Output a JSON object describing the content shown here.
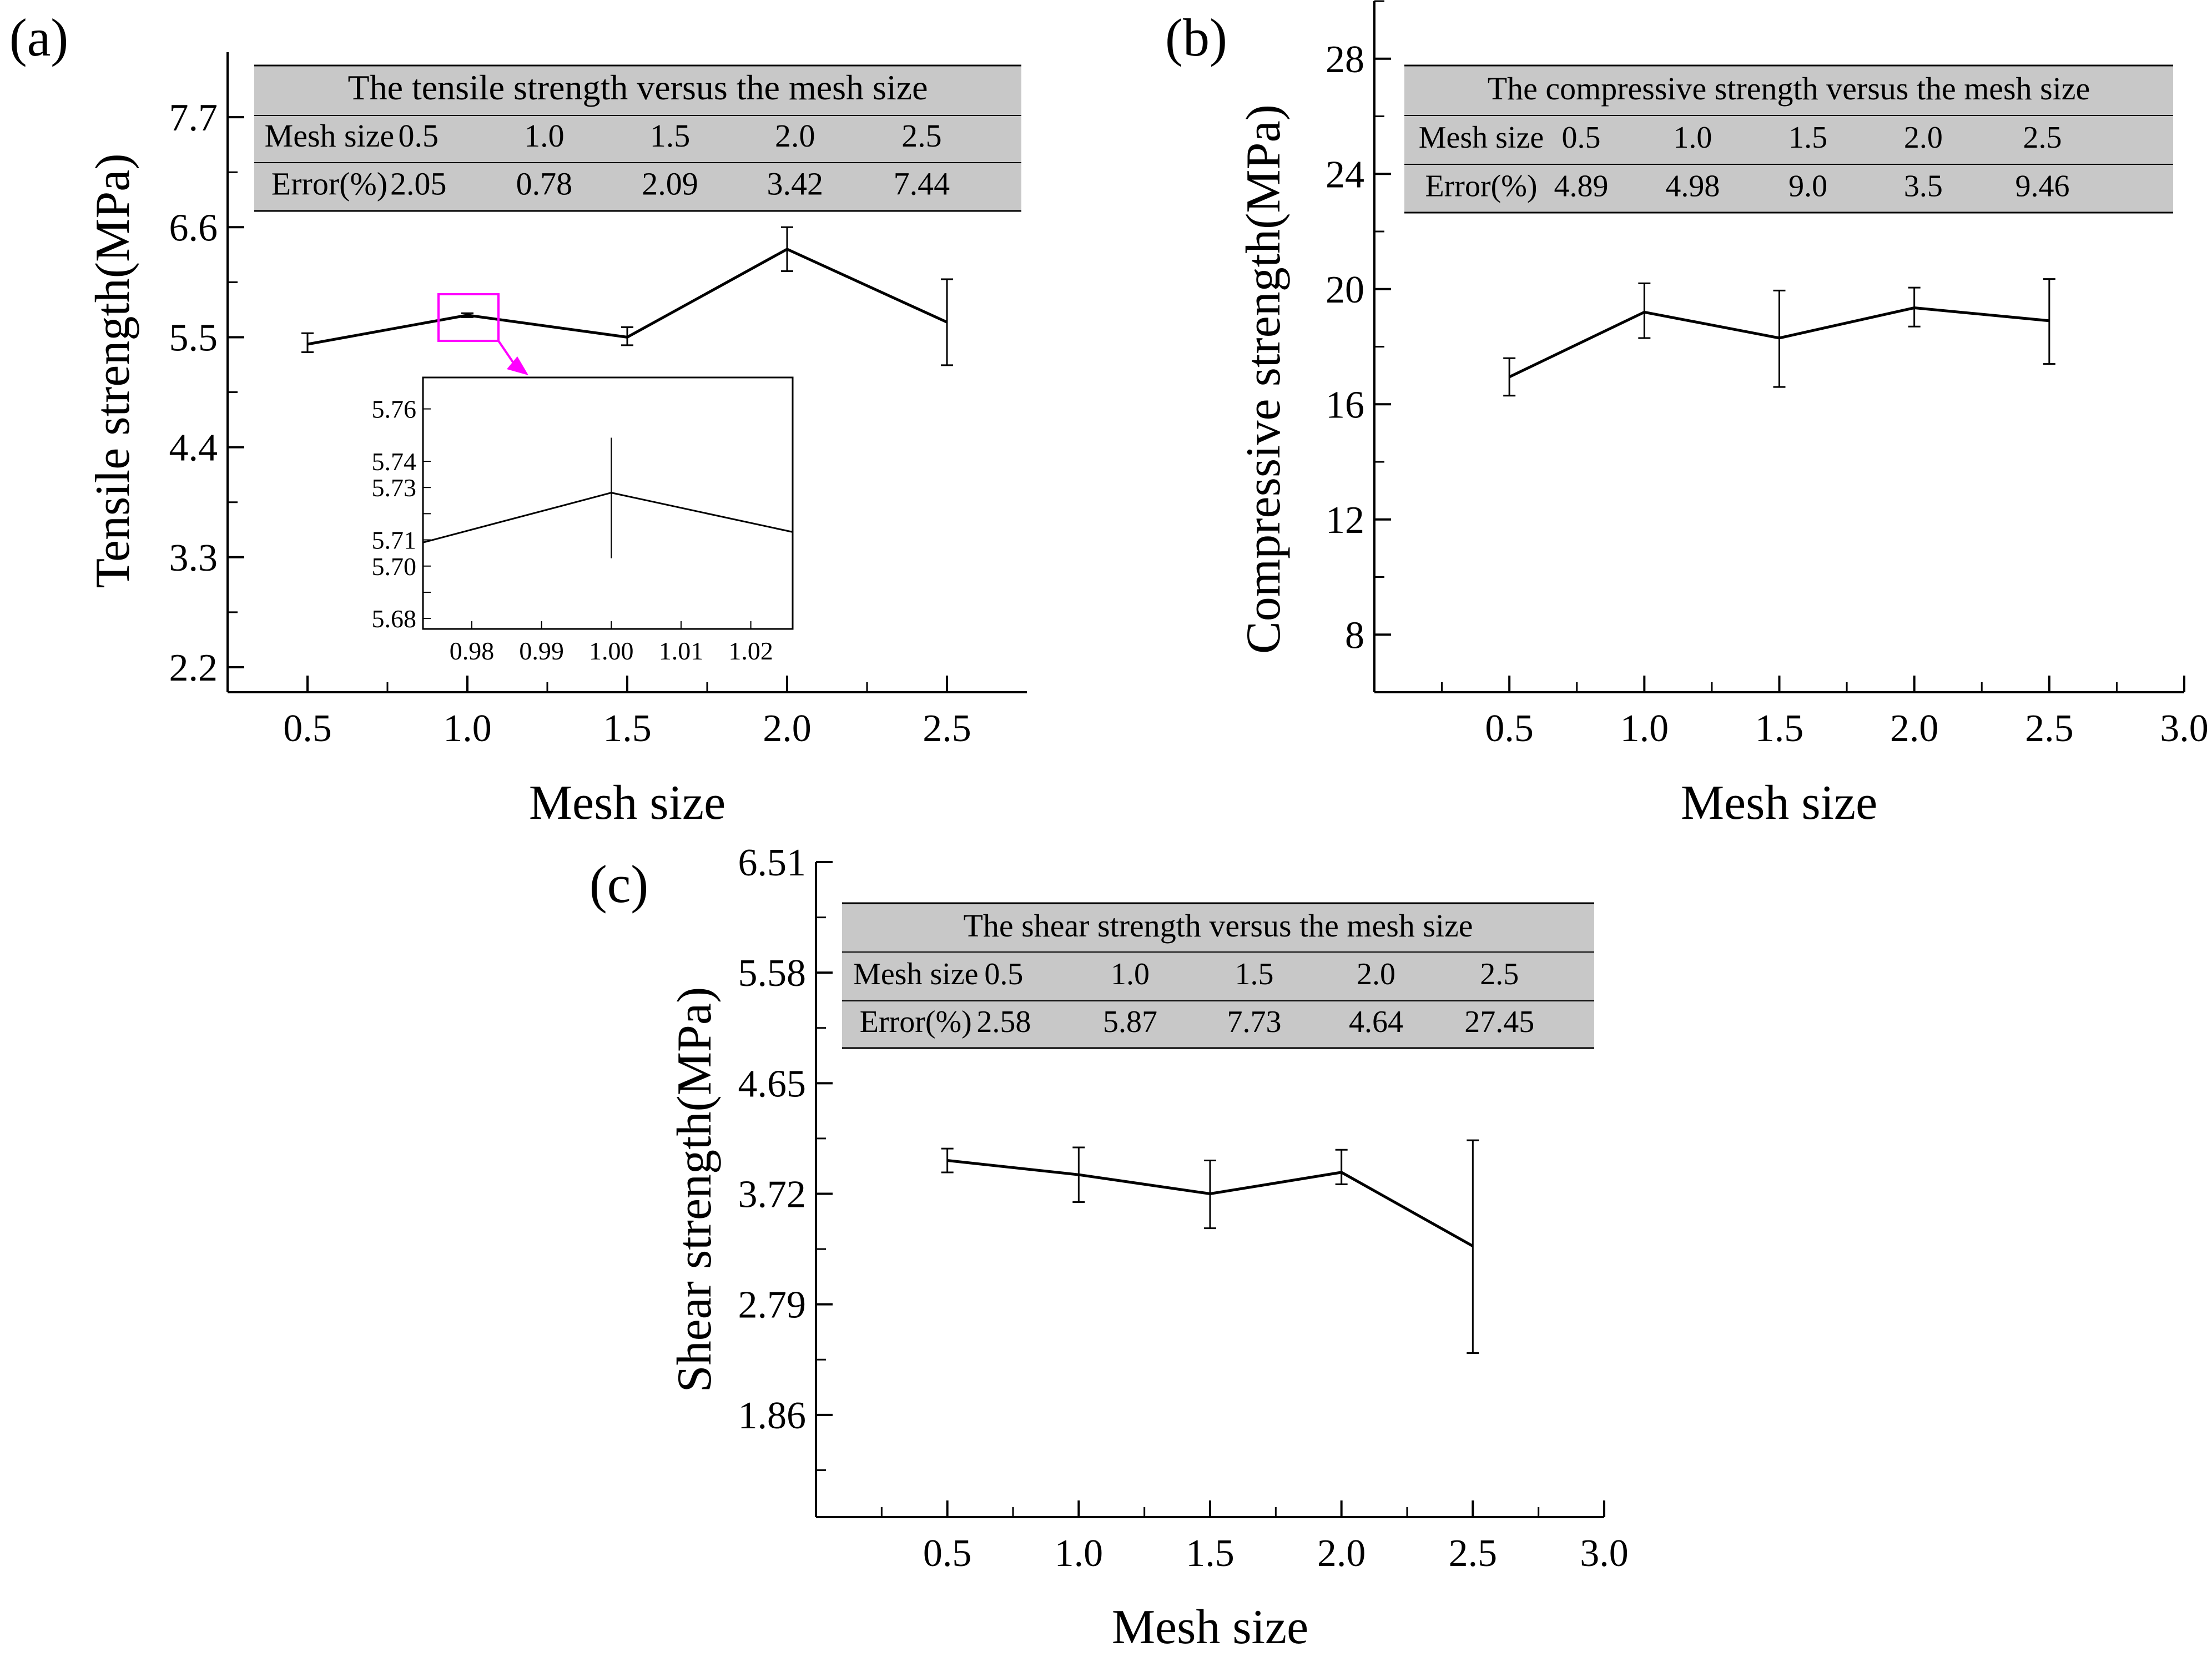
{
  "figure": {
    "colors": {
      "line": "#000000",
      "table_bg": "#c8c8c8",
      "highlight": "#ff00ff",
      "background": "#ffffff"
    }
  },
  "chart_data": [
    {
      "id": "a",
      "panel_label": "(a)",
      "type": "line",
      "xlabel": "Mesh size",
      "ylabel": "Tensile strength(MPa)",
      "xlim": [
        0.25,
        2.75
      ],
      "ylim": [
        1.95,
        8.35
      ],
      "xticks": [
        0.5,
        1.0,
        1.5,
        2.0,
        2.5
      ],
      "xtick_labels": [
        "0.5",
        "1.0",
        "1.5",
        "2.0",
        "2.5"
      ],
      "xminor": [
        0.75,
        1.25,
        1.75,
        2.25
      ],
      "yticks": [
        2.2,
        3.3,
        4.4,
        5.5,
        6.6,
        7.7
      ],
      "ytick_labels": [
        "2.2",
        "3.3",
        "4.4",
        "5.5",
        "6.6",
        "7.7"
      ],
      "yminor": [
        2.75,
        3.85,
        4.95,
        6.05,
        7.15
      ],
      "x": [
        0.5,
        1.0,
        1.5,
        2.0,
        2.5
      ],
      "y": [
        5.43,
        5.72,
        5.5,
        6.38,
        5.65
      ],
      "err_low": [
        5.35,
        5.7,
        5.42,
        6.16,
        5.22
      ],
      "err_high": [
        5.54,
        5.74,
        5.6,
        6.6,
        6.08
      ],
      "table": {
        "title": "The tensile strength versus the mesh size",
        "header": [
          "Mesh size",
          "0.5",
          "1.0",
          "1.5",
          "2.0",
          "2.5"
        ],
        "row": [
          "Error(%)",
          "2.05",
          "0.78",
          "2.09",
          "3.42",
          "7.44"
        ]
      },
      "inset": {
        "xlim": [
          0.973,
          1.026
        ],
        "ylim": [
          5.676,
          5.772
        ],
        "xticks": [
          0.98,
          0.99,
          1.0,
          1.01,
          1.02
        ],
        "xtick_labels": [
          "0.98",
          "0.99",
          "1.00",
          "1.01",
          "1.02"
        ],
        "yticks": [
          5.68,
          5.69,
          5.7,
          5.71,
          5.72,
          5.73,
          5.74,
          5.76
        ],
        "ytick_labels": [
          "5.68",
          "",
          "5.70",
          "5.71",
          "",
          "5.73",
          "5.74",
          "5.76"
        ],
        "x": [
          0.973,
          1.0,
          1.026
        ],
        "y": [
          5.709,
          5.728,
          5.713
        ],
        "err_x": 1.0,
        "err_low": 5.703,
        "err_high": 5.749
      }
    },
    {
      "id": "b",
      "panel_label": "(b)",
      "type": "line",
      "xlabel": "Mesh size",
      "ylabel": "Compressive strength(MPa)",
      "xlim": [
        0.0,
        3.0
      ],
      "ylim": [
        6.0,
        30.0
      ],
      "xticks": [
        0.5,
        1.0,
        1.5,
        2.0,
        2.5,
        3.0
      ],
      "xtick_labels": [
        "0.5",
        "1.0",
        "1.5",
        "2.0",
        "2.5",
        "3.0"
      ],
      "xminor": [
        0.25,
        0.75,
        1.25,
        1.75,
        2.25,
        2.75
      ],
      "yticks": [
        8,
        12,
        16,
        20,
        24,
        28
      ],
      "ytick_labels": [
        "8",
        "12",
        "16",
        "20",
        "24",
        "28"
      ],
      "yminor": [
        6,
        10,
        14,
        18,
        22,
        26,
        30
      ],
      "x": [
        0.5,
        1.0,
        1.5,
        2.0,
        2.5
      ],
      "y": [
        16.95,
        19.2,
        18.3,
        19.35,
        18.9
      ],
      "err_low": [
        16.3,
        18.3,
        16.6,
        18.7,
        17.4
      ],
      "err_high": [
        17.6,
        20.2,
        19.95,
        20.05,
        20.35
      ],
      "table": {
        "title": "The compressive strength versus the mesh size",
        "header": [
          "Mesh size",
          "0.5",
          "1.0",
          "1.5",
          "2.0",
          "2.5"
        ],
        "row": [
          "Error(%)",
          "4.89",
          "4.98",
          "9.0",
          "3.5",
          "9.46"
        ]
      }
    },
    {
      "id": "c",
      "panel_label": "(c)",
      "type": "line",
      "xlabel": "Mesh size",
      "ylabel": "Shear strength(MPa)",
      "xlim": [
        0.0,
        3.0
      ],
      "ylim": [
        1.0,
        6.51
      ],
      "xticks": [
        0.5,
        1.0,
        1.5,
        2.0,
        2.5,
        3.0
      ],
      "xtick_labels": [
        "0.5",
        "1.0",
        "1.5",
        "2.0",
        "2.5",
        "3.0"
      ],
      "xminor": [
        0.25,
        0.75,
        1.25,
        1.75,
        2.25,
        2.75
      ],
      "yticks": [
        1.86,
        2.79,
        3.72,
        4.65,
        5.58,
        6.51
      ],
      "ytick_labels": [
        "1.86",
        "2.79",
        "3.72",
        "4.65",
        "5.58",
        "6.51"
      ],
      "yminor": [
        1.395,
        2.325,
        3.255,
        4.185,
        5.115,
        6.045
      ],
      "x": [
        0.5,
        1.0,
        1.5,
        2.0,
        2.5
      ],
      "y": [
        4.0,
        3.88,
        3.72,
        3.9,
        3.28
      ],
      "err_low": [
        3.9,
        3.65,
        3.43,
        3.8,
        2.38
      ],
      "err_high": [
        4.1,
        4.11,
        4.0,
        4.09,
        4.17
      ],
      "table": {
        "title": "The shear strength versus the mesh size",
        "header": [
          "Mesh size",
          "0.5",
          "1.0",
          "1.5",
          "2.0",
          "2.5"
        ],
        "row": [
          "Error(%)",
          "2.58",
          "5.87",
          "7.73",
          "4.64",
          "27.45"
        ]
      }
    }
  ]
}
